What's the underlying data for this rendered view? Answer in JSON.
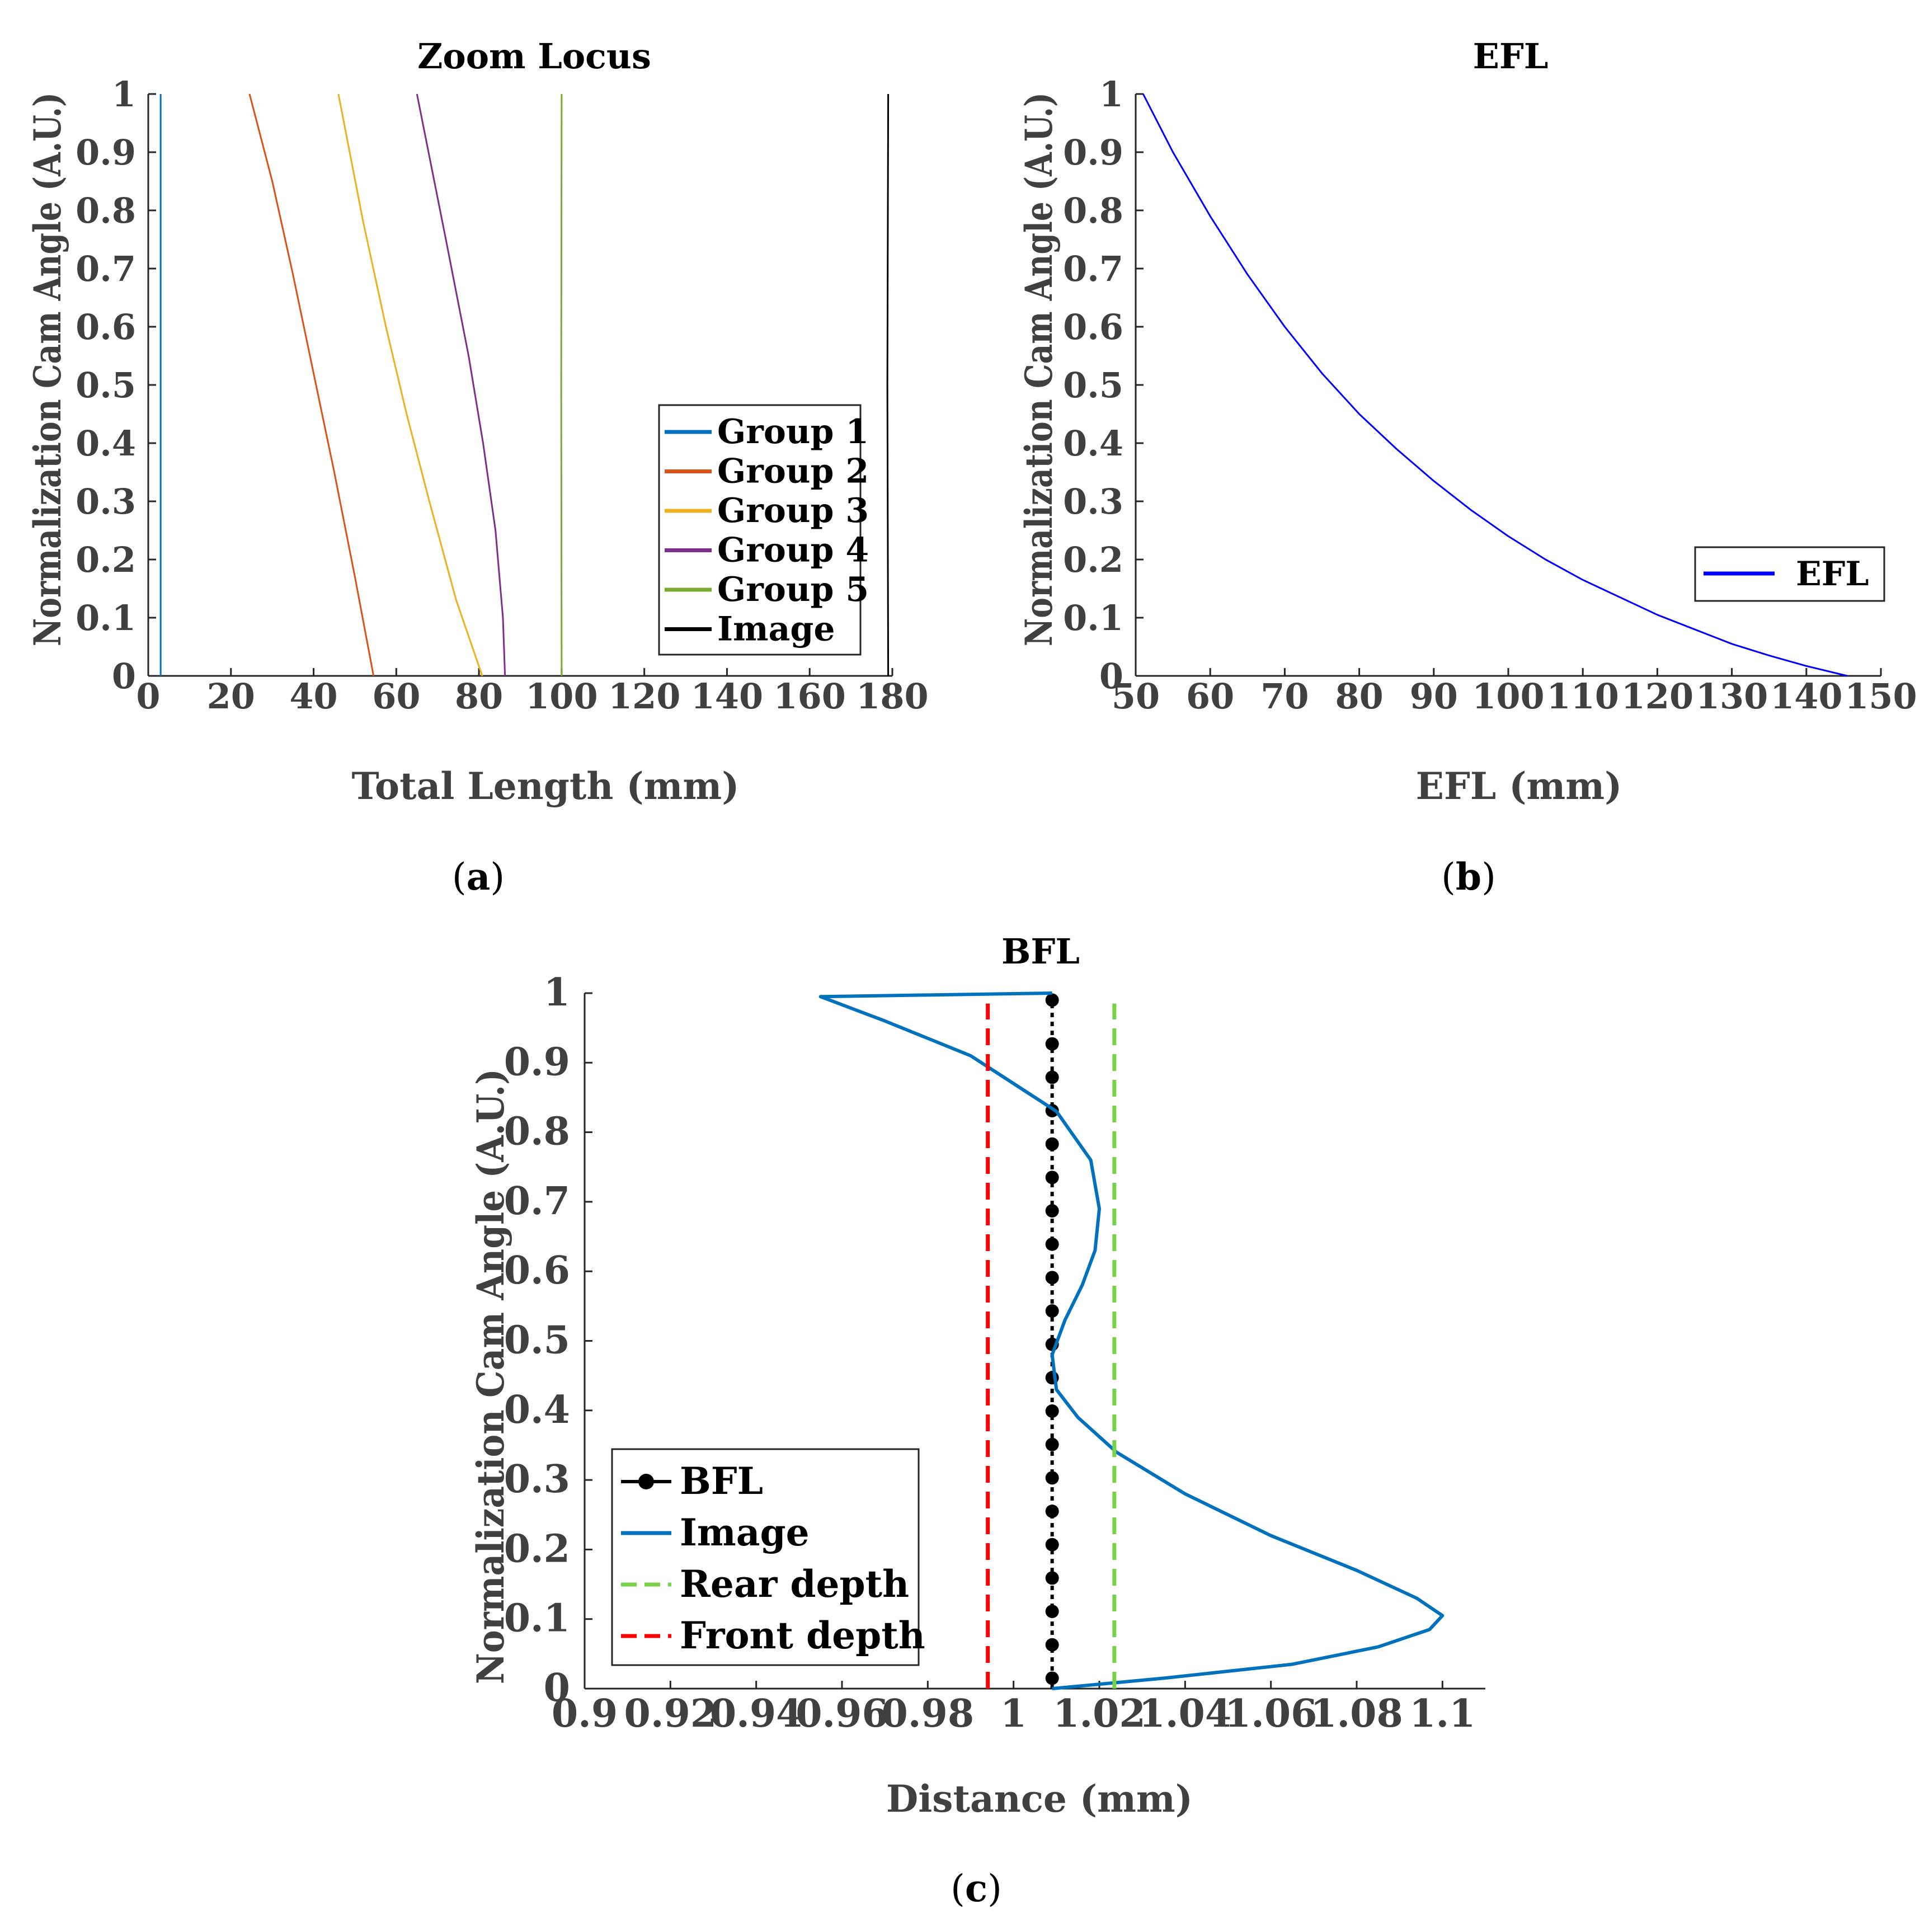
{
  "chart_data": [
    {
      "type": "line",
      "title": "Zoom Locus",
      "xlabel": "Total Length (mm)",
      "ylabel": "Normalization Cam Angle (A.U.)",
      "xlim": [
        0,
        180
      ],
      "ylim": [
        0,
        1
      ],
      "xticks": [
        "0",
        "20",
        "40",
        "60",
        "80",
        "100",
        "120",
        "140",
        "160",
        "180"
      ],
      "yticks": [
        "0",
        "0.1",
        "0.2",
        "0.3",
        "0.4",
        "0.5",
        "0.6",
        "0.7",
        "0.8",
        "0.9",
        "1"
      ],
      "caption": "a",
      "legend_position": "center-right",
      "series": [
        {
          "name": "Group 1",
          "color": "#0072BD",
          "x": [
            3,
            3
          ],
          "y": [
            0,
            1
          ]
        },
        {
          "name": "Group 2",
          "color": "#D95319",
          "x": [
            54.5,
            50,
            45,
            40,
            35,
            30,
            24.5
          ],
          "y": [
            0,
            0.17,
            0.35,
            0.52,
            0.69,
            0.85,
            1
          ]
        },
        {
          "name": "Group 3",
          "color": "#EDB120",
          "x": [
            80.8,
            74.5,
            68,
            62.5,
            57.5,
            52,
            46
          ],
          "y": [
            0,
            0.13,
            0.3,
            0.45,
            0.6,
            0.78,
            1
          ]
        },
        {
          "name": "Group 4",
          "color": "#7E2F8E",
          "x": [
            86.3,
            85.8,
            84,
            81,
            77.5,
            72,
            65
          ],
          "y": [
            0,
            0.1,
            0.25,
            0.4,
            0.55,
            0.75,
            1
          ]
        },
        {
          "name": "Group 5",
          "color": "#77AC30",
          "x": [
            100,
            99.9,
            100
          ],
          "y": [
            0,
            0.5,
            1
          ]
        },
        {
          "name": "Image",
          "color": "#000000",
          "x": [
            179,
            178.8,
            179
          ],
          "y": [
            0,
            0.5,
            1
          ]
        }
      ]
    },
    {
      "type": "line",
      "title": "EFL",
      "xlabel": "EFL (mm)",
      "ylabel": "Normalization Cam Angle (A.U.)",
      "xlim": [
        50,
        150
      ],
      "ylim": [
        0,
        1
      ],
      "xticks": [
        "50",
        "60",
        "70",
        "80",
        "90",
        "100",
        "110",
        "120",
        "130",
        "140",
        "150"
      ],
      "yticks": [
        "0",
        "0.1",
        "0.2",
        "0.3",
        "0.4",
        "0.5",
        "0.6",
        "0.7",
        "0.8",
        "0.9",
        "1"
      ],
      "caption": "b",
      "legend_position": "lower-right",
      "series": [
        {
          "name": "EFL",
          "color": "#0000FF",
          "x": [
            51,
            55,
            60,
            65,
            70,
            75,
            80,
            85,
            90,
            95,
            100,
            105,
            110,
            115,
            120,
            125,
            130,
            135,
            140,
            145.5
          ],
          "y": [
            1.0,
            0.9,
            0.79,
            0.69,
            0.6,
            0.52,
            0.45,
            0.39,
            0.335,
            0.285,
            0.24,
            0.2,
            0.165,
            0.135,
            0.105,
            0.08,
            0.055,
            0.035,
            0.017,
            0.0
          ]
        }
      ]
    },
    {
      "type": "line",
      "title": "BFL",
      "xlabel": "Distance (mm)",
      "ylabel": "Normalization Cam Angle (A.U.)",
      "xlim": [
        0.9,
        1.11
      ],
      "ylim": [
        0,
        1
      ],
      "xticks": [
        "0.9",
        "0.92",
        "0.94",
        "0.96",
        "0.98",
        "1",
        "1.02",
        "1.04",
        "1.06",
        "1.08",
        "1.1"
      ],
      "yticks": [
        "0",
        "0.1",
        "0.2",
        "0.3",
        "0.4",
        "0.5",
        "0.6",
        "0.7",
        "0.8",
        "0.9",
        "1"
      ],
      "caption": "c",
      "legend_position": "lower-left",
      "series": [
        {
          "name": "BFL",
          "color": "#000000",
          "style": "dotted-markers",
          "x_const": 1.009,
          "y": [
            0.015,
            0.063,
            0.111,
            0.159,
            0.207,
            0.255,
            0.303,
            0.351,
            0.399,
            0.447,
            0.495,
            0.543,
            0.591,
            0.639,
            0.687,
            0.735,
            0.783,
            0.831,
            0.879,
            0.927,
            0.99
          ]
        },
        {
          "name": "Image",
          "color": "#0072BD",
          "x": [
            1.009,
            1.035,
            1.065,
            1.085,
            1.097,
            1.1,
            1.094,
            1.08,
            1.06,
            1.04,
            1.024,
            1.015,
            1.01,
            1.009,
            1.012,
            1.016,
            1.019,
            1.02,
            1.018,
            1.01,
            0.99,
            0.97,
            0.955,
            1.009
          ],
          "y": [
            0.0,
            0.015,
            0.035,
            0.06,
            0.085,
            0.105,
            0.13,
            0.17,
            0.22,
            0.28,
            0.34,
            0.39,
            0.43,
            0.48,
            0.53,
            0.58,
            0.63,
            0.69,
            0.76,
            0.83,
            0.91,
            0.96,
            0.995,
            1.0
          ]
        },
        {
          "name": "Rear depth",
          "color": "#77D24A",
          "style": "dashed",
          "x_const": 1.0235,
          "y": [
            0.0,
            0.985
          ]
        },
        {
          "name": "Front depth",
          "color": "#FF0000",
          "style": "dashed",
          "x_const": 0.994,
          "y": [
            0.0,
            0.985
          ]
        }
      ]
    }
  ]
}
